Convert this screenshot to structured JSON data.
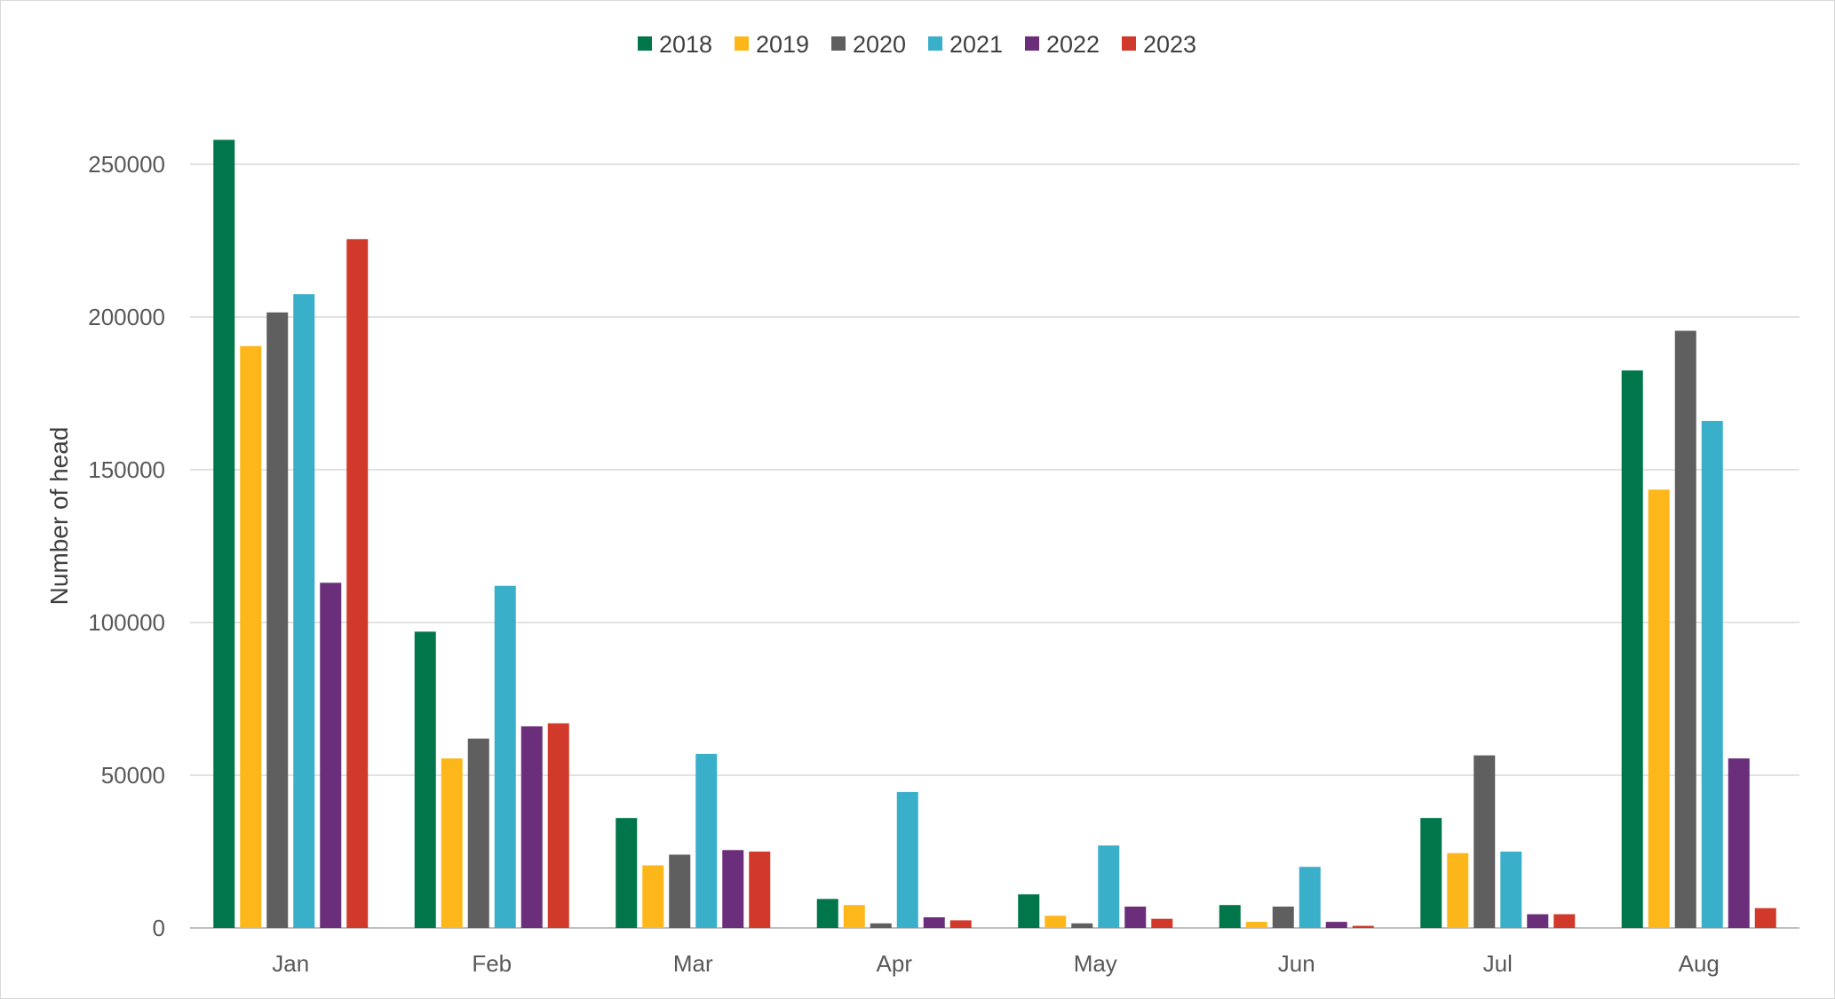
{
  "chart_data": {
    "type": "bar",
    "title": "",
    "xlabel": "",
    "ylabel": "Number of head",
    "ylim": [
      0,
      275000
    ],
    "yticks": [
      0,
      50000,
      100000,
      150000,
      200000,
      250000
    ],
    "ytick_labels": [
      "0",
      "50000",
      "100000",
      "150000",
      "200000",
      "250000"
    ],
    "grid": true,
    "legend_position": "top-center",
    "categories": [
      "Jan",
      "Feb",
      "Mar",
      "Apr",
      "May",
      "Jun",
      "Jul",
      "Aug"
    ],
    "series": [
      {
        "name": "2018",
        "color": "#00764A",
        "values": [
          258000,
          97000,
          36000,
          9500,
          11000,
          7500,
          36000,
          182500
        ]
      },
      {
        "name": "2019",
        "color": "#FDB71A",
        "values": [
          190500,
          55500,
          20500,
          7500,
          4000,
          2000,
          24500,
          143500
        ]
      },
      {
        "name": "2020",
        "color": "#5F5F5F",
        "values": [
          201500,
          62000,
          24000,
          1500,
          1500,
          7000,
          56500,
          195500
        ]
      },
      {
        "name": "2021",
        "color": "#3AAFCA",
        "values": [
          207500,
          112000,
          57000,
          44500,
          27000,
          20000,
          25000,
          166000
        ]
      },
      {
        "name": "2022",
        "color": "#6B2E7A",
        "values": [
          113000,
          66000,
          25500,
          3500,
          7000,
          2000,
          4500,
          55500
        ]
      },
      {
        "name": "2023",
        "color": "#D13A2A",
        "values": [
          225500,
          67000,
          25000,
          2500,
          3000,
          700,
          4500,
          6500
        ]
      }
    ]
  }
}
